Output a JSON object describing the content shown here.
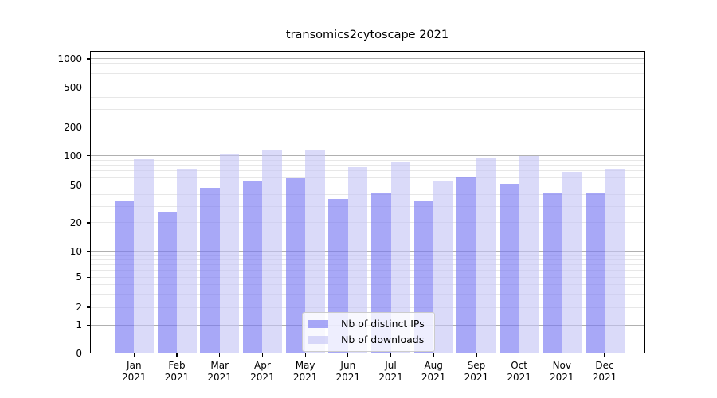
{
  "chart_data": {
    "type": "bar",
    "title": "transomics2cytoscape 2021",
    "categories": [
      "Jan",
      "Feb",
      "Mar",
      "Apr",
      "May",
      "Jun",
      "Jul",
      "Aug",
      "Sep",
      "Oct",
      "Nov",
      "Dec"
    ],
    "year": "2021",
    "series": [
      {
        "key": "distinct-ips",
        "name": "Nb of distinct IPs",
        "color": "#a9a9f7",
        "fill": "rgba(122,122,243,0.65)",
        "values": [
          34,
          26,
          47,
          55,
          60,
          36,
          42,
          34,
          61,
          52,
          41,
          41
        ]
      },
      {
        "key": "downloads",
        "name": "Nb of downloads",
        "color": "#d8d8f8",
        "fill": "rgba(196,196,245,0.62)",
        "values": [
          93,
          74,
          105,
          114,
          115,
          77,
          88,
          56,
          96,
          100,
          69,
          74
        ]
      }
    ],
    "yscale": "log",
    "ylim": [
      0,
      1267
    ],
    "yticks": [
      1000,
      500,
      200,
      100,
      50,
      20,
      10,
      5,
      2,
      1,
      0
    ],
    "grid": {
      "major_values": [
        1,
        10,
        100,
        1000
      ],
      "major_color": "#b0b0b0",
      "minor_values": [
        2,
        3,
        4,
        5,
        6,
        7,
        8,
        9,
        20,
        30,
        40,
        50,
        60,
        70,
        80,
        90,
        200,
        300,
        400,
        500,
        600,
        700,
        800,
        900
      ],
      "minor_color": "#e7e7e7"
    },
    "legend": {
      "position": "lower center"
    }
  }
}
